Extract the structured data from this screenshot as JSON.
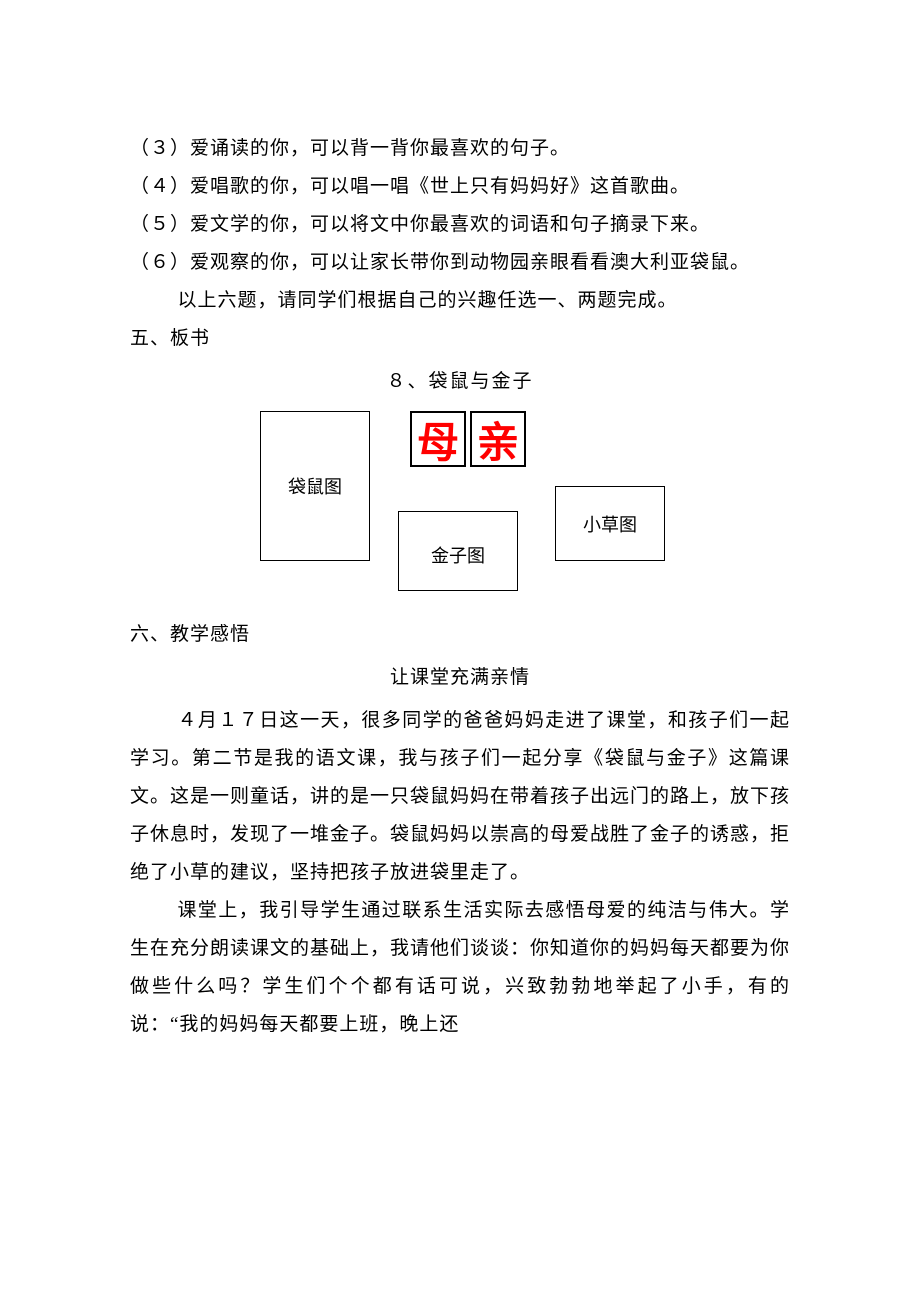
{
  "items": {
    "item3": "（３）爱诵读的你，可以背一背你最喜欢的句子。",
    "item4": "（４）爱唱歌的你，可以唱一唱《世上只有妈妈好》这首歌曲。",
    "item5": "（５）爱文学的你，可以将文中你最喜欢的词语和句子摘录下来。",
    "item6": "（６）爱观察的你，可以让家长带你到动物园亲眼看看澳大利亚袋鼠。",
    "summary": "以上六题，请同学们根据自己的兴趣任选一、两题完成。"
  },
  "section5": {
    "heading": "五、板书",
    "title": "８、袋鼠与金子",
    "diagram": {
      "kangaroo_label": "袋鼠图",
      "gold_label": "金子图",
      "grass_label": "小草图",
      "char_mu": "母",
      "char_qin": "亲",
      "box_border_color": "#000000",
      "char_color": "#ff0000",
      "char_fontsize": 42
    }
  },
  "section6": {
    "heading": "六、教学感悟",
    "subtitle": "让课堂充满亲情",
    "para1": "４月１７日这一天，很多同学的爸爸妈妈走进了课堂，和孩子们一起学习。第二节是我的语文课，我与孩子们一起分享《袋鼠与金子》这篇课文。这是一则童话，讲的是一只袋鼠妈妈在带着孩子出远门的路上，放下孩子休息时，发现了一堆金子。袋鼠妈妈以崇高的母爱战胜了金子的诱惑，拒绝了小草的建议，坚持把孩子放进袋里走了。",
    "para2": "课堂上，我引导学生通过联系生活实际去感悟母爱的纯洁与伟大。学生在充分朗读课文的基础上，我请他们谈谈：你知道你的妈妈每天都要为你做些什么吗？学生们个个都有话可说，兴致勃勃地举起了小手，有的说：“我的妈妈每天都要上班，晚上还"
  },
  "colors": {
    "background": "#ffffff",
    "text": "#000000",
    "accent_red": "#ff0000",
    "border": "#000000"
  },
  "typography": {
    "body_fontsize": 19,
    "line_height": 2.0,
    "font_family": "SimSun"
  }
}
